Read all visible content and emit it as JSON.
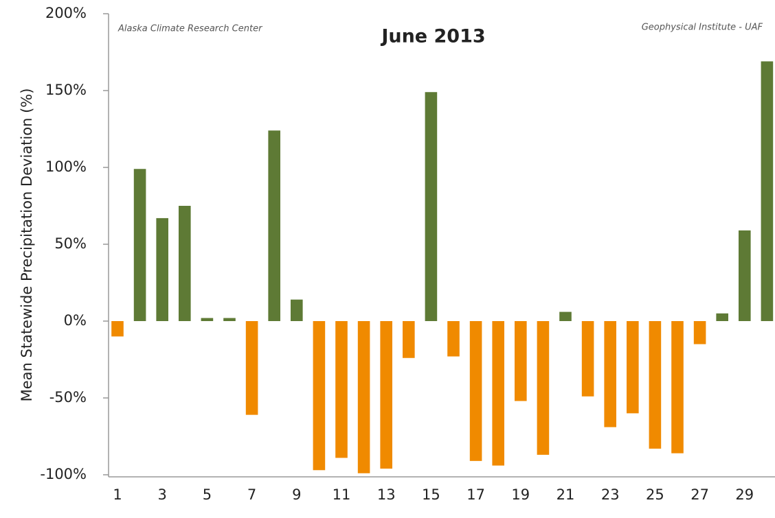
{
  "chart_data": {
    "type": "bar",
    "title": "June 2013",
    "annotations": [
      "Alaska Climate Research Center",
      "Geophysical Institute - UAF"
    ],
    "y_label": "Mean Statewide Precipitation Deviation (%)",
    "categories": [
      "1",
      null,
      "3",
      null,
      "5",
      null,
      "7",
      null,
      "9",
      null,
      "11",
      null,
      "13",
      null,
      "15",
      null,
      "17",
      null,
      "19",
      null,
      "21",
      null,
      "23",
      null,
      "25",
      null,
      "27",
      null,
      "29",
      null
    ],
    "values": [
      -10,
      99,
      67,
      75,
      2,
      2,
      -61,
      124,
      14,
      -97,
      -89,
      -99,
      -96,
      -24,
      149,
      -23,
      -91,
      -94,
      -52,
      -87,
      6,
      -49,
      -69,
      -60,
      -83,
      -86,
      -15,
      5,
      59,
      169
    ],
    "colors": {
      "positive": "#5e7a35",
      "negative": "#f08a00"
    },
    "ylim": [
      -100,
      200
    ],
    "yticks": [
      {
        "value": -100,
        "label": "-100%"
      },
      {
        "value": -50,
        "label": "-50%"
      },
      {
        "value": 0,
        "label": "0%"
      },
      {
        "value": 50,
        "label": "50%"
      },
      {
        "value": 100,
        "label": "100%"
      },
      {
        "value": 150,
        "label": "150%"
      },
      {
        "value": 200,
        "label": "200%"
      }
    ],
    "grid": false
  }
}
